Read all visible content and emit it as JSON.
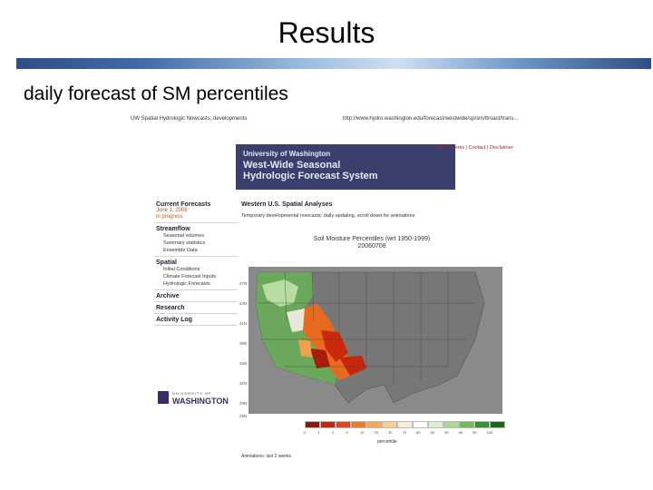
{
  "slide": {
    "title": "Results",
    "subtitle": "daily forecast of SM percentiles"
  },
  "screenshot": {
    "header_left": "UW Spatial Hydrologic Nowcasts, developments",
    "header_right": "http://www.hydro.washington.edu/forecast/westwide/sp/sm/ttroast/trans...",
    "banner": {
      "institution": "University of Washington",
      "title_line1": "West-Wide Seasonal",
      "title_line2": "Hydrologic Forecast System"
    },
    "topnav": "Home | Links | Contact | Disclaimer",
    "sidebar": {
      "current_forecasts": "Current Forecasts",
      "date_line1": "June 1, 2006",
      "date_line2": "in progress",
      "streamflow": "Streamflow",
      "streamflow_items": [
        "Seasonal volumes",
        "Summary statistics",
        "Ensemble Data"
      ],
      "spatial": "Spatial",
      "spatial_items": [
        "Initial Conditions",
        "Climate Forecast Inputs",
        "Hydrologic Forecasts"
      ],
      "archive": "Archive",
      "research": "Research",
      "activity_log": "Activity Log"
    },
    "logo": {
      "small": "UNIVERSITY OF",
      "big": "WASHINGTON"
    },
    "content": {
      "heading": "Western U.S. Spatial Analyses",
      "description": "Temporary developmental nowcasts: daily updating, scroll down for animations",
      "map_title_line1": "Soil Moisture Percentiles (wrt 1950-1999)",
      "map_title_line2": "20060708"
    },
    "lat_labels": [
      "47N",
      "44N",
      "41N",
      "38N",
      "35N",
      "32N",
      "29N",
      "26N"
    ],
    "legend": {
      "colors": [
        "#8b1a0a",
        "#c4260e",
        "#e0471a",
        "#f07a26",
        "#f6a84c",
        "#f7cf86",
        "#fbead2",
        "#ffffff",
        "#d9efcf",
        "#a8d98e",
        "#6cbd58",
        "#2e9a2a",
        "#156b17"
      ],
      "ticks": [
        "0",
        "1",
        "2",
        "5",
        "10",
        "20",
        "30",
        "70",
        "80",
        "90",
        "95",
        "98",
        "99",
        "100"
      ],
      "label": "percentile"
    },
    "animation_note": "Animations: last 2 weeks"
  }
}
